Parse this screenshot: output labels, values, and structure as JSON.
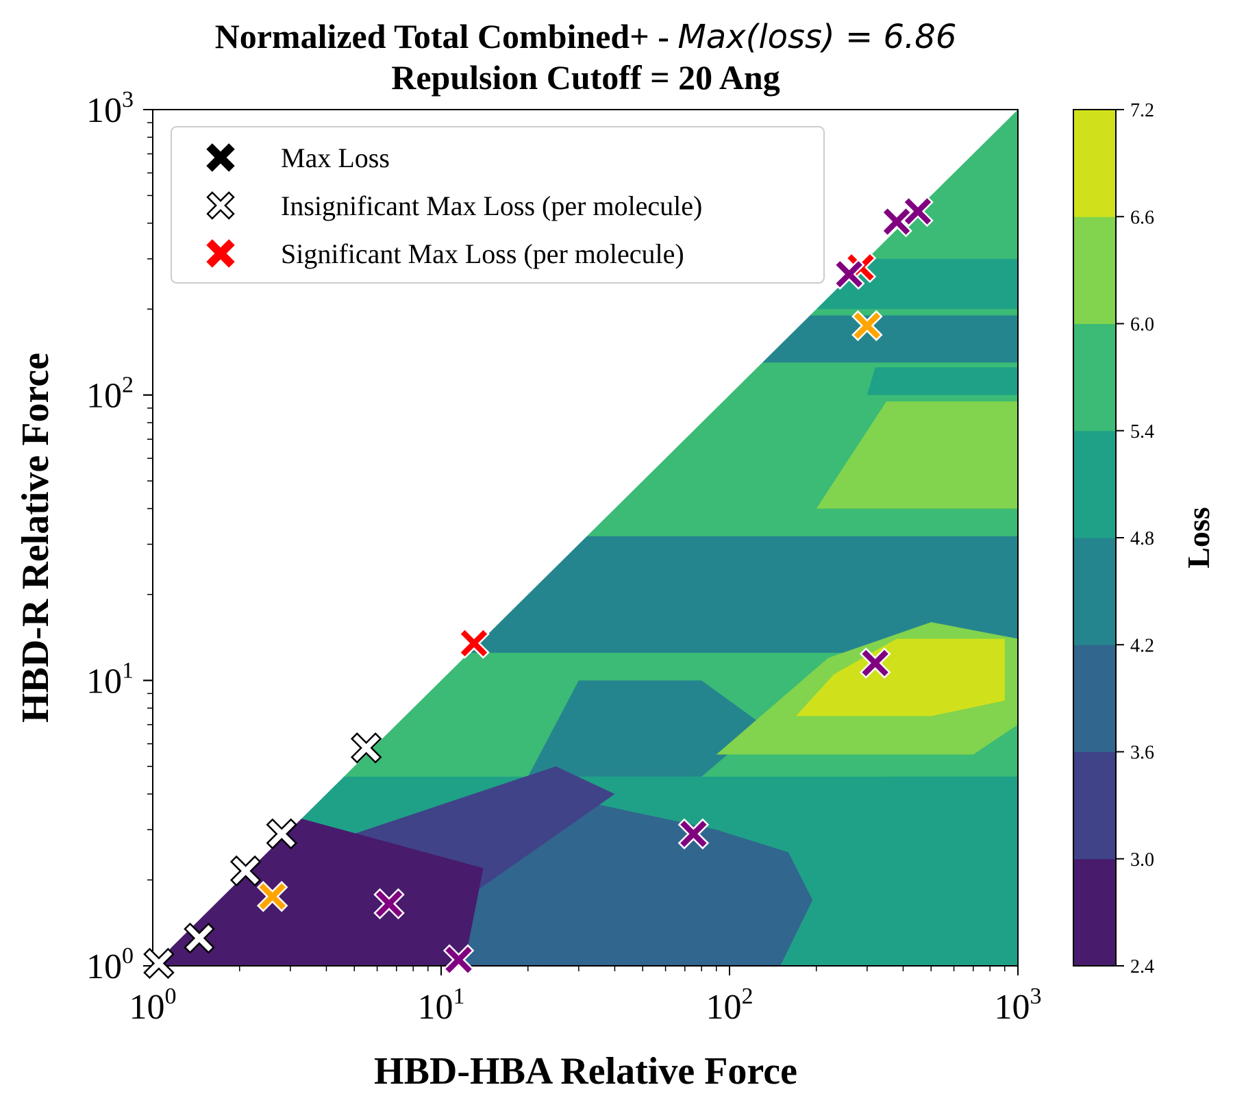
{
  "chart_data": {
    "type": "contour",
    "title": {
      "line1_text": "Normalized Total Combined+ - ",
      "line1_math": "Max(loss) = 6.86",
      "line2": "Repulsion Cutoff = 20 Ang"
    },
    "xlabel": "HBD-HBA Relative Force",
    "ylabel": "HBD-R Relative Force",
    "x_scale": "log",
    "y_scale": "log",
    "xlim": [
      1,
      1000
    ],
    "ylim": [
      1,
      1000
    ],
    "x_ticks": [
      {
        "base": "10",
        "exp": "0"
      },
      {
        "base": "10",
        "exp": "1"
      },
      {
        "base": "10",
        "exp": "2"
      },
      {
        "base": "10",
        "exp": "3"
      }
    ],
    "y_ticks": [
      {
        "base": "10",
        "exp": "0"
      },
      {
        "base": "10",
        "exp": "1"
      },
      {
        "base": "10",
        "exp": "2"
      },
      {
        "base": "10",
        "exp": "3"
      }
    ],
    "max_loss": 6.86,
    "colorbar": {
      "label": "Loss",
      "levels": [
        "2.4",
        "3.0",
        "3.6",
        "4.2",
        "4.8",
        "5.4",
        "6.0",
        "6.6",
        "7.2"
      ],
      "colors": [
        "#481b6d",
        "#404387",
        "#31668e",
        "#25858e",
        "#1fa187",
        "#3bbb75",
        "#82d34d",
        "#d0e11c"
      ]
    },
    "contour_regions": [
      {
        "name": "band-y-30-1000",
        "level": 5,
        "poly": [
          [
            1,
            30
          ],
          [
            1000,
            30
          ],
          [
            1000,
            1000
          ],
          [
            30,
            30
          ]
        ]
      },
      {
        "name": "band-y-100-1000",
        "level": 5,
        "poly": [
          [
            100,
            100
          ],
          [
            1000,
            100
          ],
          [
            1000,
            1000
          ]
        ]
      },
      {
        "name": "band-y-12-30",
        "level": 3,
        "poly": [
          [
            12,
            12
          ],
          [
            1000,
            12
          ],
          [
            1000,
            32
          ],
          [
            32,
            32
          ]
        ]
      },
      {
        "name": "band-y-4.5-12",
        "level": 5,
        "poly": [
          [
            4.5,
            4.5
          ],
          [
            1000,
            4.5
          ],
          [
            1000,
            12.5
          ],
          [
            12.5,
            12.5
          ]
        ]
      },
      {
        "name": "band-y-200-300",
        "level": 4,
        "poly": [
          [
            200,
            200
          ],
          [
            1000,
            200
          ],
          [
            1000,
            300
          ],
          [
            300,
            300
          ]
        ]
      },
      {
        "name": "band-y-130-200",
        "level": 3,
        "poly": [
          [
            130,
            130
          ],
          [
            1000,
            130
          ],
          [
            1000,
            190
          ],
          [
            190,
            190
          ]
        ]
      },
      {
        "name": "upper-right-green",
        "level": 6,
        "poly": [
          [
            200,
            40
          ],
          [
            1000,
            40
          ],
          [
            1000,
            95
          ],
          [
            350,
            95
          ]
        ]
      },
      {
        "name": "right-teal-mid",
        "level": 4,
        "poly": [
          [
            300,
            100
          ],
          [
            1000,
            100
          ],
          [
            1000,
            125
          ],
          [
            320,
            125
          ]
        ]
      },
      {
        "name": "mid-dark-teal",
        "level": 3,
        "poly": [
          [
            20,
            4.6
          ],
          [
            80,
            4.6
          ],
          [
            130,
            7
          ],
          [
            80,
            10
          ],
          [
            30,
            10
          ]
        ]
      },
      {
        "name": "yellow-green-area",
        "level": 6,
        "poly": [
          [
            90,
            5.5
          ],
          [
            700,
            5.5
          ],
          [
            1000,
            7
          ],
          [
            1000,
            14
          ],
          [
            500,
            16
          ],
          [
            220,
            12
          ]
        ]
      },
      {
        "name": "yellow-core",
        "level": 7,
        "poly": [
          [
            170,
            7.5
          ],
          [
            500,
            7.5
          ],
          [
            900,
            8.5
          ],
          [
            900,
            14
          ],
          [
            380,
            14
          ],
          [
            230,
            10.5
          ]
        ]
      },
      {
        "name": "lower-teal",
        "level": 4,
        "poly": [
          [
            1,
            1
          ],
          [
            1000,
            1
          ],
          [
            1000,
            4.6
          ],
          [
            4.6,
            4.6
          ]
        ]
      },
      {
        "name": "lower-mid-blue",
        "level": 2,
        "poly": [
          [
            10,
            1
          ],
          [
            180,
            1
          ],
          [
            200,
            1.6
          ],
          [
            160,
            2.5
          ],
          [
            90,
            3
          ],
          [
            30,
            3.8
          ],
          [
            10,
            2
          ]
        ]
      },
      {
        "name": "lower-right-green",
        "level": 4,
        "poly": [
          [
            150,
            1
          ],
          [
            1000,
            1
          ],
          [
            1000,
            4.6
          ],
          [
            350,
            4.6
          ],
          [
            250,
            3.5
          ],
          [
            210,
            2
          ]
        ]
      },
      {
        "name": "violet-band",
        "level": 1,
        "poly": [
          [
            2.2,
            2.2
          ],
          [
            25,
            5
          ],
          [
            40,
            4
          ],
          [
            10,
            1.5
          ],
          [
            3,
            1
          ]
        ]
      },
      {
        "name": "deep-purple-core",
        "level": 0,
        "poly": [
          [
            1.05,
            1.0
          ],
          [
            12,
            1.0
          ],
          [
            14,
            2.2
          ],
          [
            3.2,
            3.3
          ],
          [
            1.5,
            1.7
          ]
        ]
      }
    ],
    "legend": {
      "placement": "top-left",
      "entries": [
        {
          "label": "Max Loss",
          "style": "black"
        },
        {
          "label": "Insignificant Max Loss (per molecule)",
          "style": "white"
        },
        {
          "label": "Significant Max Loss (per molecule)",
          "style": "red"
        }
      ]
    },
    "markers": [
      {
        "x": 1.05,
        "y": 1.02,
        "color": "white"
      },
      {
        "x": 1.45,
        "y": 1.25,
        "color": "white"
      },
      {
        "x": 2.1,
        "y": 2.15,
        "color": "white"
      },
      {
        "x": 2.8,
        "y": 2.9,
        "color": "white"
      },
      {
        "x": 5.5,
        "y": 5.8,
        "color": "white"
      },
      {
        "x": 2.6,
        "y": 1.75,
        "color": "orange"
      },
      {
        "x": 6.6,
        "y": 1.65,
        "color": "purple"
      },
      {
        "x": 11.5,
        "y": 1.05,
        "color": "purple"
      },
      {
        "x": 13,
        "y": 13.5,
        "color": "red"
      },
      {
        "x": 75,
        "y": 2.9,
        "color": "purple"
      },
      {
        "x": 320,
        "y": 11.5,
        "color": "purple"
      },
      {
        "x": 300,
        "y": 175,
        "color": "orange"
      },
      {
        "x": 285,
        "y": 280,
        "color": "red"
      },
      {
        "x": 260,
        "y": 265,
        "color": "purple"
      },
      {
        "x": 380,
        "y": 405,
        "color": "purple"
      },
      {
        "x": 450,
        "y": 440,
        "color": "purple"
      }
    ],
    "marker_colors": {
      "black": "#000000",
      "white": "#ffffff",
      "red": "#ff0000",
      "orange": "#ffa500",
      "purple": "#800080"
    }
  }
}
